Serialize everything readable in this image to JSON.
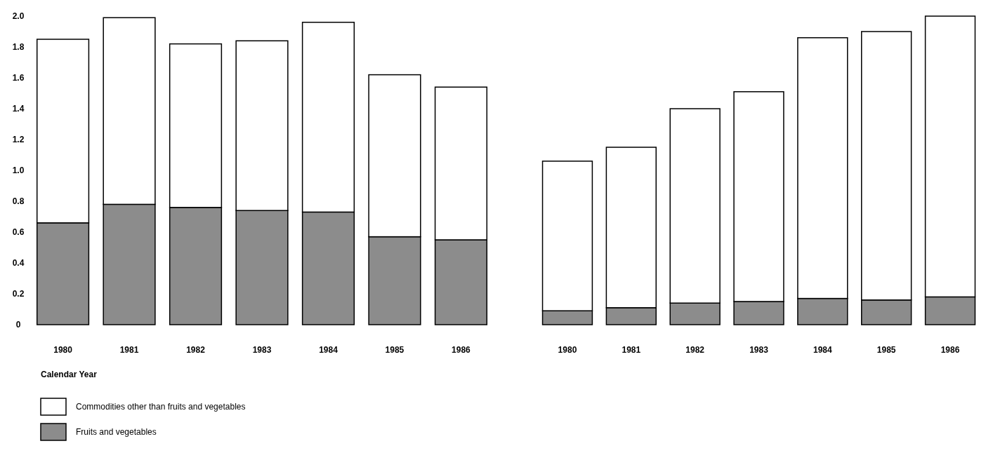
{
  "chart_data": [
    {
      "type": "bar",
      "stacked": true,
      "categories": [
        "1980",
        "1981",
        "1982",
        "1983",
        "1984",
        "1985",
        "1986"
      ],
      "xlabel": "Calendar Year",
      "ylim": [
        0,
        2
      ],
      "yticks": [
        0,
        0.2,
        0.4,
        0.6,
        0.8,
        {
          "value": 1,
          "label": "1.0"
        },
        1.2,
        1.4,
        1.6,
        1.8,
        {
          "value": 2,
          "label": "2.0"
        }
      ],
      "legend": "bottom left",
      "grid": false,
      "series": [
        {
          "name": "Fruits and vegetables",
          "color": "#8c8c8c",
          "values": [
            0.66,
            0.78,
            0.76,
            0.74,
            0.73,
            0.57,
            0.55
          ]
        },
        {
          "name": "Commodities other than fruits and vegetables",
          "color": "#ffffff",
          "values": [
            1.19,
            1.21,
            1.06,
            1.1,
            1.23,
            1.05,
            0.99
          ]
        }
      ]
    },
    {
      "type": "bar",
      "stacked": true,
      "categories": [
        "1980",
        "1981",
        "1982",
        "1983",
        "1984",
        "1985",
        "1986"
      ],
      "ylim": [
        0,
        2
      ],
      "tick_labels": "x",
      "grid": false,
      "series": [
        {
          "color": "#8c8c8c",
          "values": [
            0.09,
            0.11,
            0.14,
            0.15,
            0.17,
            0.16,
            0.18
          ]
        },
        {
          "color": "#ffffff",
          "values": [
            0.97,
            1.04,
            1.26,
            1.36,
            1.69,
            1.74,
            1.82
          ]
        }
      ]
    }
  ]
}
